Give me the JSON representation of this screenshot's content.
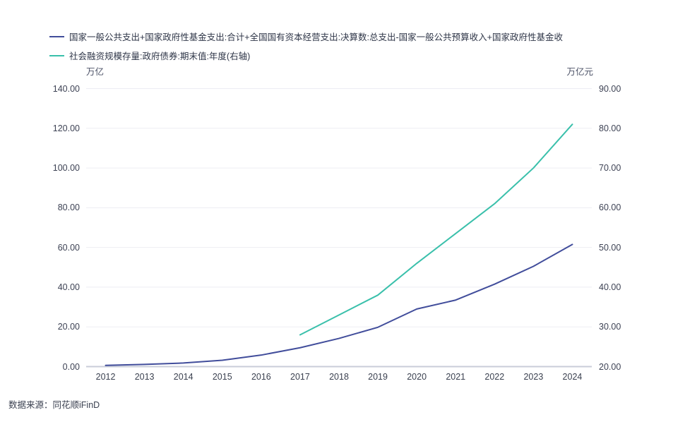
{
  "legend": {
    "items": [
      {
        "label": "国家一般公共支出+国家政府性基金支出:合计+全国国有资本经营支出:决算数:总支出-国家一般公共预算收入+国家政府性基金收",
        "color": "#414d9b"
      },
      {
        "label": "社会融资规模存量:政府债券:期末值:年度(右轴)",
        "color": "#3ac0ab"
      }
    ]
  },
  "footer": {
    "source": "数据来源：同花顺iFinD"
  },
  "colors": {
    "grid": "#ededf3",
    "axis_line": "#c9cdd9",
    "text": "#3d4254",
    "series_left": "#414d9b",
    "series_right": "#3ac0ab"
  },
  "chart_data": {
    "type": "line",
    "title": "",
    "categories": [
      "2012",
      "2013",
      "2014",
      "2015",
      "2016",
      "2017",
      "2018",
      "2019",
      "2020",
      "2021",
      "2022",
      "2023",
      "2024"
    ],
    "series": [
      {
        "name": "国家一般公共支出+国家政府性基金支出:合计+全国国有资本经营支出:决算数:总支出-国家一般公共预算收入+国家政府性基金收",
        "axis": "left",
        "color": "#414d9b",
        "values": [
          0.6,
          1.1,
          1.8,
          3.2,
          5.8,
          9.5,
          14.2,
          19.8,
          29.0,
          33.5,
          41.5,
          50.5,
          61.5
        ]
      },
      {
        "name": "社会融资规模存量:政府债券:期末值:年度(右轴)",
        "axis": "right",
        "color": "#3ac0ab",
        "values": [
          null,
          null,
          null,
          null,
          null,
          28.0,
          33.0,
          38.0,
          46.0,
          53.5,
          61.0,
          70.0,
          81.0
        ]
      }
    ],
    "left_axis": {
      "unit": "万亿",
      "min": 0,
      "max": 140,
      "step": 20,
      "ticks": [
        "140.00",
        "120.00",
        "100.00",
        "80.00",
        "60.00",
        "40.00",
        "20.00",
        "0.00"
      ]
    },
    "right_axis": {
      "unit": "万亿元",
      "min": 20,
      "max": 90,
      "step": 10,
      "ticks": [
        "90.00",
        "80.00",
        "70.00",
        "60.00",
        "50.00",
        "40.00",
        "30.00",
        "20.00"
      ]
    },
    "grid": true,
    "legend_position": "top-left"
  }
}
